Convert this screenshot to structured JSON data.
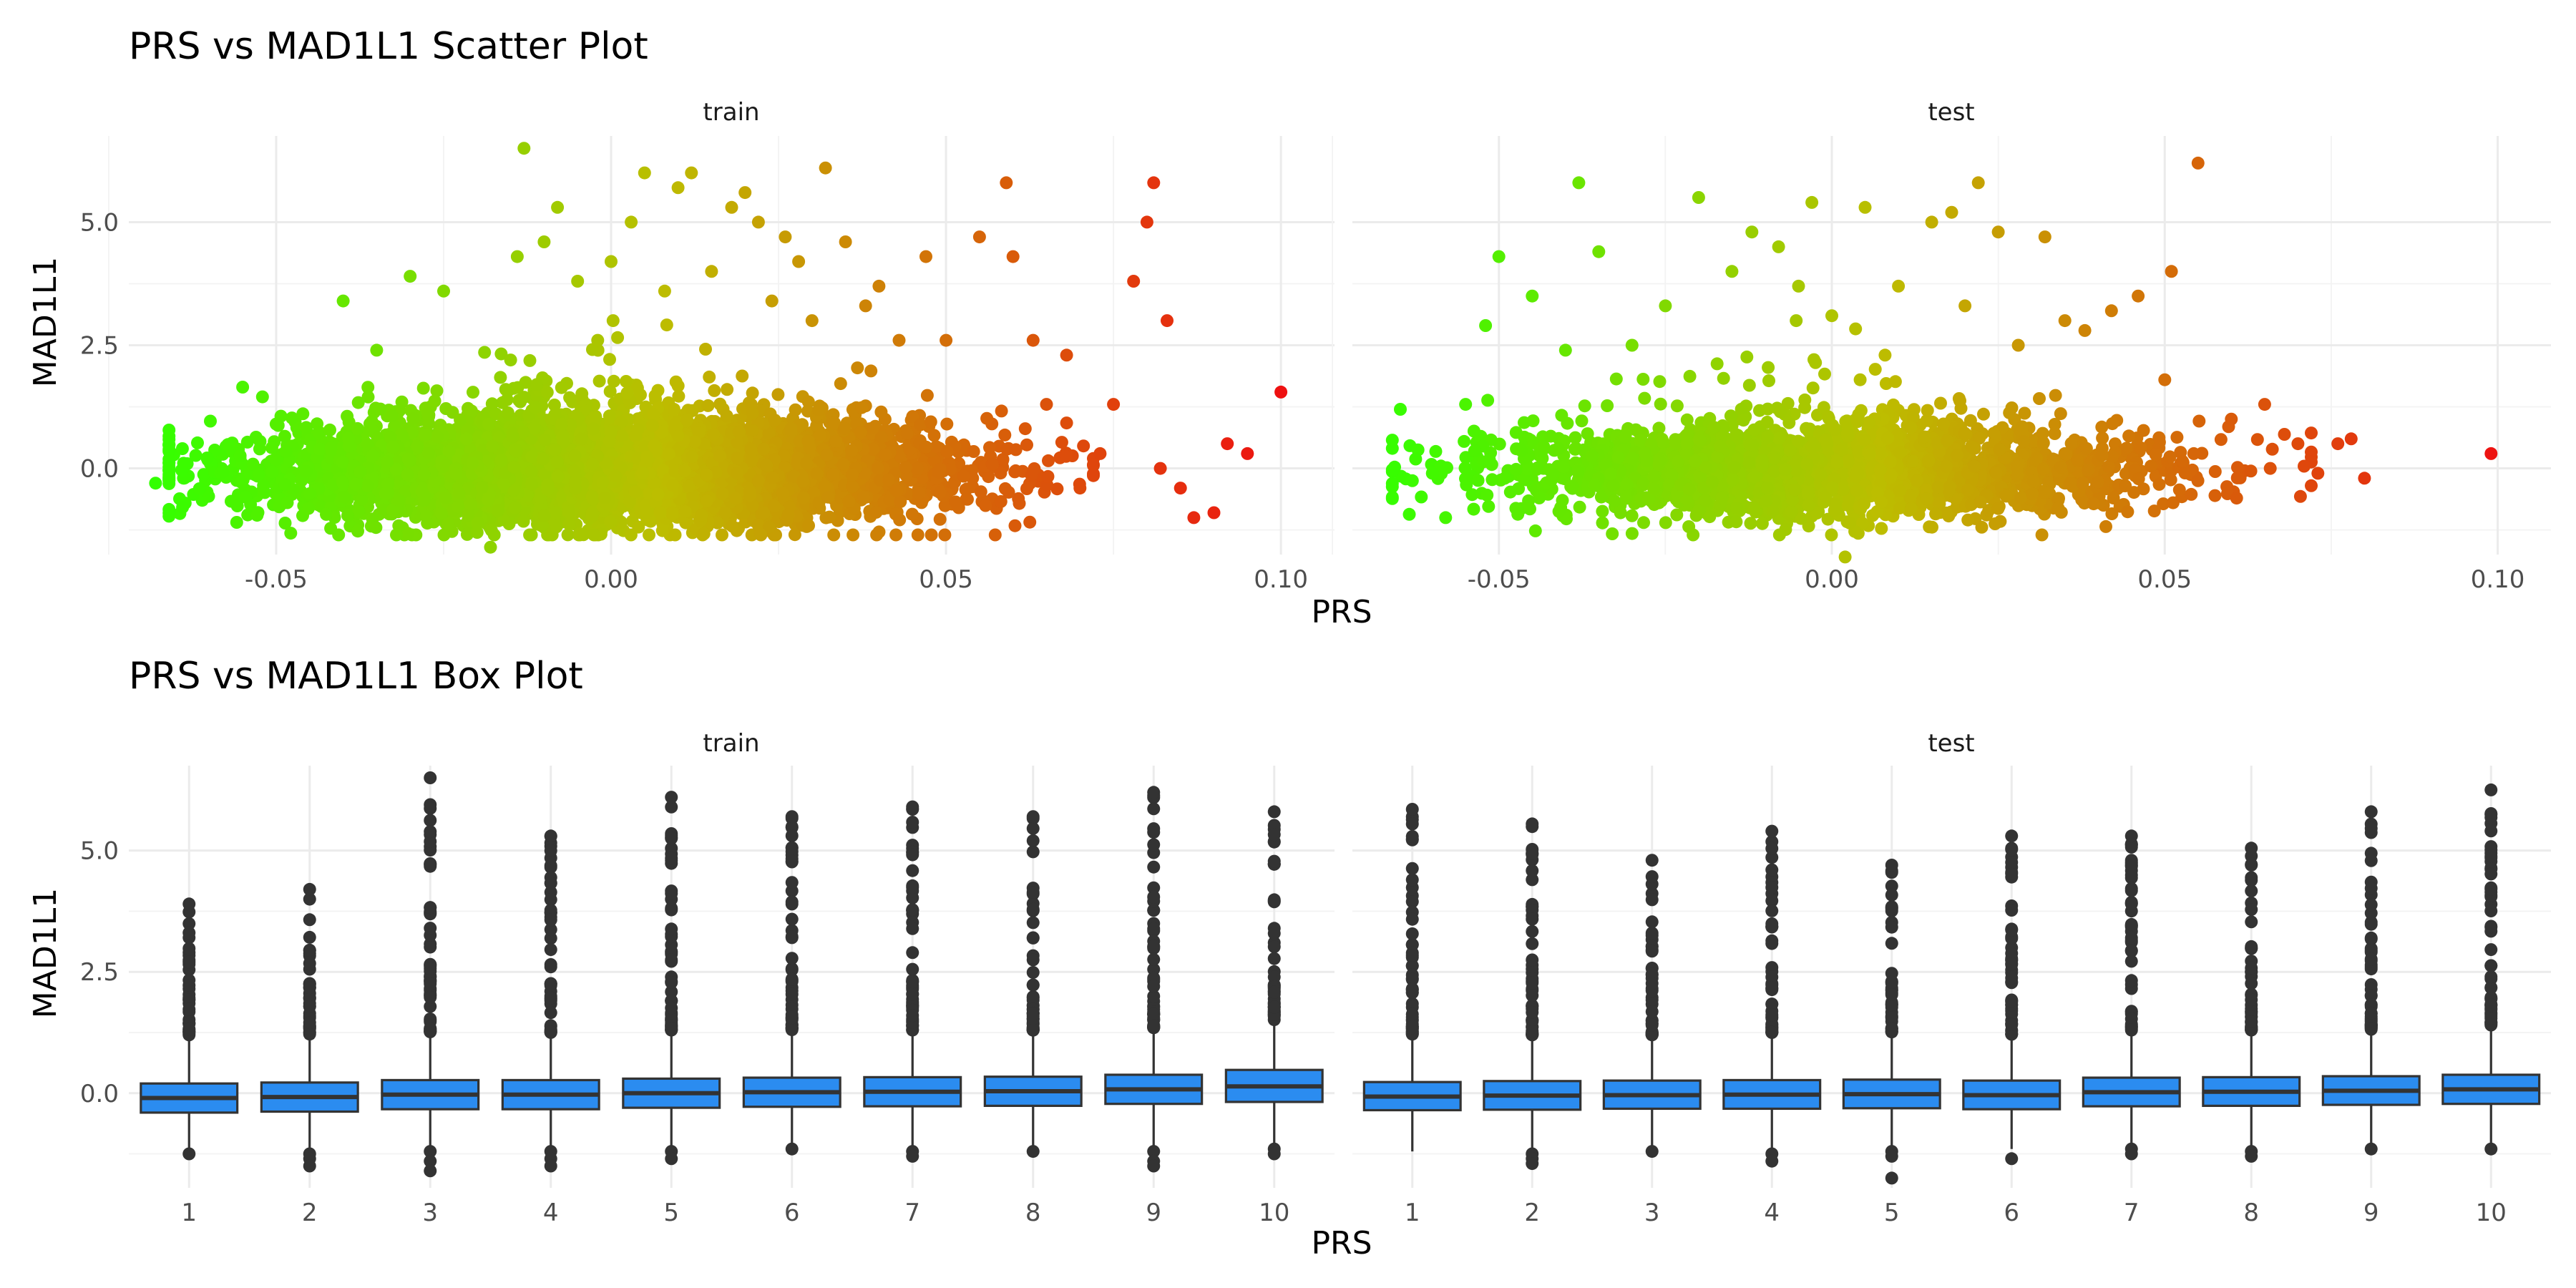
{
  "chart_data": [
    {
      "type": "scatter",
      "title": "PRS vs MAD1L1 Scatter Plot",
      "xlabel": "PRS",
      "ylabel": "MAD1L1",
      "xlim": [
        -0.072,
        0.108
      ],
      "ylim": [
        -1.75,
        6.75
      ],
      "xticks": [
        -0.05,
        0.0,
        0.05,
        0.1
      ],
      "xtick_labels": [
        "-0.05",
        "0.00",
        "0.05",
        "0.10"
      ],
      "yticks": [
        0.0,
        2.5,
        5.0
      ],
      "ytick_labels": [
        "0.0",
        "2.5",
        "5.0"
      ],
      "grid": true,
      "color_gradient": {
        "low": "#33ff00",
        "mid": "#bdbd00",
        "high": "#ee1111",
        "by": "PRS"
      },
      "facets": [
        {
          "name": "train",
          "cloud": {
            "x_mean": 0.0,
            "x_sd": 0.024,
            "y_mean": -0.05,
            "y_sd": 0.5,
            "n": 6000
          },
          "points": [
            [
              -0.068,
              -0.3
            ],
            [
              -0.066,
              -0.2
            ],
            [
              -0.064,
              0.4
            ],
            [
              -0.055,
              1.65
            ],
            [
              -0.05,
              0.9
            ],
            [
              -0.04,
              3.4
            ],
            [
              -0.035,
              2.4
            ],
            [
              -0.03,
              3.9
            ],
            [
              -0.025,
              3.6
            ],
            [
              -0.02,
              -1.3
            ],
            [
              -0.018,
              -1.6
            ],
            [
              -0.015,
              2.2
            ],
            [
              -0.014,
              4.3
            ],
            [
              -0.013,
              6.5
            ],
            [
              -0.01,
              4.6
            ],
            [
              -0.008,
              5.3
            ],
            [
              -0.005,
              3.8
            ],
            [
              -0.002,
              2.6
            ],
            [
              0.0,
              4.2
            ],
            [
              0.003,
              5.0
            ],
            [
              0.005,
              6.0
            ],
            [
              0.008,
              3.6
            ],
            [
              0.01,
              5.7
            ],
            [
              0.012,
              6.0
            ],
            [
              0.015,
              4.0
            ],
            [
              0.018,
              5.3
            ],
            [
              0.02,
              5.6
            ],
            [
              0.022,
              5.0
            ],
            [
              0.024,
              3.4
            ],
            [
              0.026,
              4.7
            ],
            [
              0.028,
              4.2
            ],
            [
              0.03,
              3.0
            ],
            [
              0.032,
              6.1
            ],
            [
              0.035,
              4.6
            ],
            [
              0.038,
              3.3
            ],
            [
              0.04,
              3.7
            ],
            [
              0.043,
              2.6
            ],
            [
              0.047,
              4.3
            ],
            [
              0.05,
              2.6
            ],
            [
              0.055,
              4.7
            ],
            [
              0.059,
              5.8
            ],
            [
              0.06,
              4.3
            ],
            [
              0.063,
              2.6
            ],
            [
              0.065,
              1.3
            ],
            [
              0.068,
              2.3
            ],
            [
              0.07,
              -0.4
            ],
            [
              0.073,
              0.3
            ],
            [
              0.075,
              1.3
            ],
            [
              0.078,
              3.8
            ],
            [
              0.08,
              5.0
            ],
            [
              0.081,
              5.8
            ],
            [
              0.082,
              0.0
            ],
            [
              0.083,
              3.0
            ],
            [
              0.085,
              -0.4
            ],
            [
              0.087,
              -1.0
            ],
            [
              0.09,
              -0.9
            ],
            [
              0.092,
              0.5
            ],
            [
              0.095,
              0.3
            ],
            [
              0.1,
              1.55
            ]
          ]
        },
        {
          "name": "test",
          "cloud": {
            "x_mean": 0.0,
            "x_sd": 0.024,
            "y_mean": -0.05,
            "y_sd": 0.45,
            "n": 2600
          },
          "points": [
            [
              -0.063,
              -0.25
            ],
            [
              -0.06,
              -0.1
            ],
            [
              -0.058,
              -1.0
            ],
            [
              -0.055,
              1.3
            ],
            [
              -0.052,
              2.9
            ],
            [
              -0.05,
              4.3
            ],
            [
              -0.045,
              3.5
            ],
            [
              -0.04,
              2.4
            ],
            [
              -0.038,
              5.8
            ],
            [
              -0.035,
              4.4
            ],
            [
              -0.03,
              2.5
            ],
            [
              -0.025,
              3.3
            ],
            [
              -0.02,
              5.5
            ],
            [
              -0.015,
              4.0
            ],
            [
              -0.012,
              4.8
            ],
            [
              -0.008,
              4.5
            ],
            [
              -0.005,
              3.7
            ],
            [
              -0.003,
              5.4
            ],
            [
              0.0,
              3.1
            ],
            [
              0.002,
              -1.8
            ],
            [
              0.005,
              5.3
            ],
            [
              0.008,
              2.3
            ],
            [
              0.01,
              3.7
            ],
            [
              0.015,
              5.0
            ],
            [
              0.018,
              5.2
            ],
            [
              0.02,
              3.3
            ],
            [
              0.022,
              5.8
            ],
            [
              0.025,
              4.8
            ],
            [
              0.028,
              2.5
            ],
            [
              0.032,
              4.7
            ],
            [
              0.035,
              3.0
            ],
            [
              0.038,
              2.8
            ],
            [
              0.042,
              3.2
            ],
            [
              0.046,
              3.5
            ],
            [
              0.05,
              1.8
            ],
            [
              0.051,
              4.0
            ],
            [
              0.055,
              6.2
            ],
            [
              0.06,
              1.0
            ],
            [
              0.065,
              1.3
            ],
            [
              0.07,
              0.5
            ],
            [
              0.073,
              -0.1
            ],
            [
              0.076,
              0.5
            ],
            [
              0.078,
              0.6
            ],
            [
              0.08,
              -0.2
            ],
            [
              0.099,
              0.3
            ]
          ]
        }
      ]
    },
    {
      "type": "box",
      "title": "PRS vs MAD1L1 Box Plot",
      "xlabel": "PRS",
      "ylabel": "MAD1L1",
      "categories": [
        "1",
        "2",
        "3",
        "4",
        "5",
        "6",
        "7",
        "8",
        "9",
        "10"
      ],
      "ylim": [
        -1.95,
        6.75
      ],
      "yticks": [
        0.0,
        2.5,
        5.0
      ],
      "ytick_labels": [
        "0.0",
        "2.5",
        "5.0"
      ],
      "grid": true,
      "box_color": "#2b8cf0",
      "facets": [
        {
          "name": "train",
          "boxes": [
            {
              "q1": -0.4,
              "median": -0.1,
              "q3": 0.2,
              "lo": -1.2,
              "hi": 1.1,
              "out_top": 3.9,
              "out_low": [
                -1.25
              ]
            },
            {
              "q1": -0.38,
              "median": -0.08,
              "q3": 0.22,
              "lo": -1.2,
              "hi": 1.1,
              "out_top": 4.2,
              "out_low": [
                -1.25,
                -1.35,
                -1.5
              ]
            },
            {
              "q1": -0.33,
              "median": -0.03,
              "q3": 0.27,
              "lo": -1.15,
              "hi": 1.15,
              "out_top": 6.5,
              "out_low": [
                -1.2,
                -1.4,
                -1.6
              ]
            },
            {
              "q1": -0.33,
              "median": -0.03,
              "q3": 0.27,
              "lo": -1.15,
              "hi": 1.15,
              "out_top": 5.3,
              "out_low": [
                -1.2,
                -1.35,
                -1.5
              ]
            },
            {
              "q1": -0.3,
              "median": 0.0,
              "q3": 0.3,
              "lo": -1.1,
              "hi": 1.2,
              "out_top": 6.1,
              "out_low": [
                -1.2,
                -1.35
              ]
            },
            {
              "q1": -0.28,
              "median": 0.02,
              "q3": 0.32,
              "lo": -1.1,
              "hi": 1.2,
              "out_top": 5.7,
              "out_low": [
                -1.15
              ]
            },
            {
              "q1": -0.27,
              "median": 0.03,
              "q3": 0.33,
              "lo": -1.1,
              "hi": 1.2,
              "out_top": 5.9,
              "out_low": [
                -1.2,
                -1.3
              ]
            },
            {
              "q1": -0.26,
              "median": 0.04,
              "q3": 0.34,
              "lo": -1.1,
              "hi": 1.2,
              "out_top": 5.7,
              "out_low": [
                -1.2
              ]
            },
            {
              "q1": -0.22,
              "median": 0.08,
              "q3": 0.38,
              "lo": -1.1,
              "hi": 1.25,
              "out_top": 6.2,
              "out_low": [
                -1.2,
                -1.4,
                -1.5
              ]
            },
            {
              "q1": -0.18,
              "median": 0.14,
              "q3": 0.48,
              "lo": -1.1,
              "hi": 1.4,
              "out_top": 5.8,
              "out_low": [
                -1.15,
                -1.25
              ]
            }
          ]
        },
        {
          "name": "test",
          "boxes": [
            {
              "q1": -0.35,
              "median": -0.07,
              "q3": 0.23,
              "lo": -1.2,
              "hi": 1.1,
              "out_top": 5.85,
              "out_low": []
            },
            {
              "q1": -0.34,
              "median": -0.05,
              "q3": 0.25,
              "lo": -1.15,
              "hi": 1.1,
              "out_top": 5.55,
              "out_low": [
                -1.25,
                -1.35,
                -1.45
              ]
            },
            {
              "q1": -0.32,
              "median": -0.04,
              "q3": 0.26,
              "lo": -1.15,
              "hi": 1.1,
              "out_top": 4.8,
              "out_low": [
                -1.2
              ]
            },
            {
              "q1": -0.32,
              "median": -0.03,
              "q3": 0.27,
              "lo": -1.15,
              "hi": 1.15,
              "out_top": 5.4,
              "out_low": [
                -1.25,
                -1.4
              ]
            },
            {
              "q1": -0.31,
              "median": -0.02,
              "q3": 0.28,
              "lo": -1.15,
              "hi": 1.15,
              "out_top": 4.7,
              "out_low": [
                -1.2,
                -1.3,
                -1.75
              ]
            },
            {
              "q1": -0.33,
              "median": -0.04,
              "q3": 0.26,
              "lo": -1.15,
              "hi": 1.1,
              "out_top": 5.3,
              "out_low": [
                -1.35
              ]
            },
            {
              "q1": -0.27,
              "median": 0.02,
              "q3": 0.32,
              "lo": -1.1,
              "hi": 1.2,
              "out_top": 5.3,
              "out_low": [
                -1.15,
                -1.25
              ]
            },
            {
              "q1": -0.26,
              "median": 0.03,
              "q3": 0.33,
              "lo": -1.1,
              "hi": 1.2,
              "out_top": 5.05,
              "out_low": [
                -1.2,
                -1.3
              ]
            },
            {
              "q1": -0.24,
              "median": 0.05,
              "q3": 0.35,
              "lo": -1.1,
              "hi": 1.2,
              "out_top": 5.8,
              "out_low": [
                -1.15
              ]
            },
            {
              "q1": -0.22,
              "median": 0.08,
              "q3": 0.38,
              "lo": -1.15,
              "hi": 1.3,
              "out_top": 6.25,
              "out_low": [
                -1.15
              ]
            }
          ]
        }
      ]
    }
  ]
}
